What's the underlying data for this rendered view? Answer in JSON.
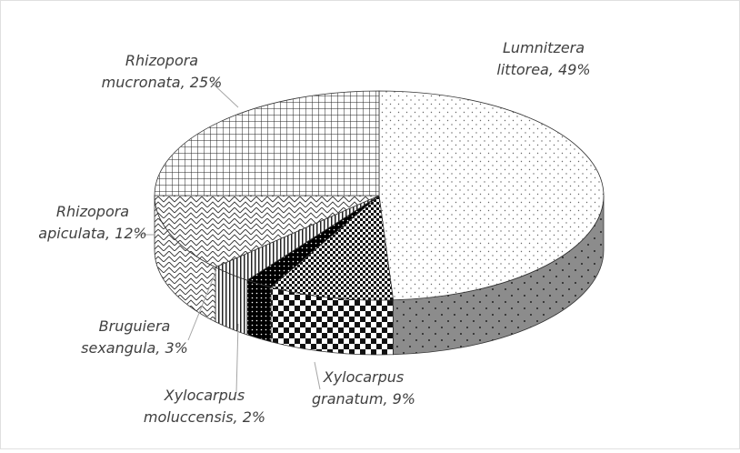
{
  "chart_data": {
    "type": "pie",
    "values": [
      49,
      9,
      2,
      3,
      12,
      25
    ],
    "value_labels": [
      "Lumnitzera littorea, 49%",
      "Xylocarpus granatum, 9%",
      "Xylocarpus moluccensis, 2%",
      "Bruguiera sexangula, 3%",
      "Rhizopora apiculata, 12%",
      "Rhizopora mucronata, 25%"
    ]
  }
}
